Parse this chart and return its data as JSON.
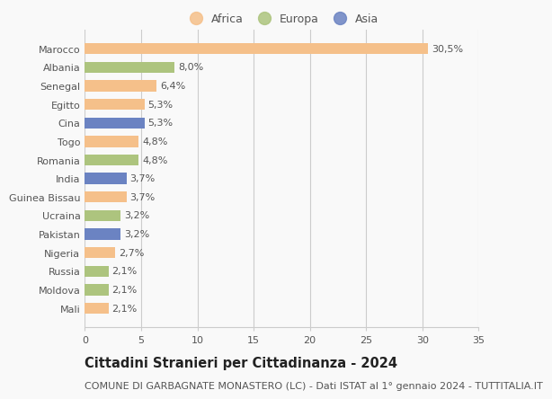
{
  "categories": [
    "Mali",
    "Moldova",
    "Russia",
    "Nigeria",
    "Pakistan",
    "Ucraina",
    "Guinea Bissau",
    "India",
    "Romania",
    "Togo",
    "Cina",
    "Egitto",
    "Senegal",
    "Albania",
    "Marocco"
  ],
  "values": [
    2.1,
    2.1,
    2.1,
    2.7,
    3.2,
    3.2,
    3.7,
    3.7,
    4.8,
    4.8,
    5.3,
    5.3,
    6.4,
    8.0,
    30.5
  ],
  "labels": [
    "2,1%",
    "2,1%",
    "2,1%",
    "2,7%",
    "3,2%",
    "3,2%",
    "3,7%",
    "3,7%",
    "4,8%",
    "4,8%",
    "5,3%",
    "5,3%",
    "6,4%",
    "8,0%",
    "30,5%"
  ],
  "colors": [
    "#f5c08a",
    "#adc47e",
    "#adc47e",
    "#f5c08a",
    "#6b83c2",
    "#adc47e",
    "#f5c08a",
    "#6b83c2",
    "#adc47e",
    "#f5c08a",
    "#6b83c2",
    "#f5c08a",
    "#f5c08a",
    "#adc47e",
    "#f5c08a"
  ],
  "continent_colors": {
    "Africa": "#f5c08a",
    "Europa": "#adc47e",
    "Asia": "#6b83c2"
  },
  "title": "Cittadini Stranieri per Cittadinanza - 2024",
  "subtitle": "COMUNE DI GARBAGNATE MONASTERO (LC) - Dati ISTAT al 1° gennaio 2024 - TUTTITALIA.IT",
  "xlim": [
    0,
    35
  ],
  "xticks": [
    0,
    5,
    10,
    15,
    20,
    25,
    30,
    35
  ],
  "background_color": "#f9f9f9",
  "bar_height": 0.6,
  "grid_color": "#cccccc",
  "title_fontsize": 10.5,
  "subtitle_fontsize": 8,
  "label_fontsize": 8,
  "tick_fontsize": 8,
  "legend_fontsize": 9
}
